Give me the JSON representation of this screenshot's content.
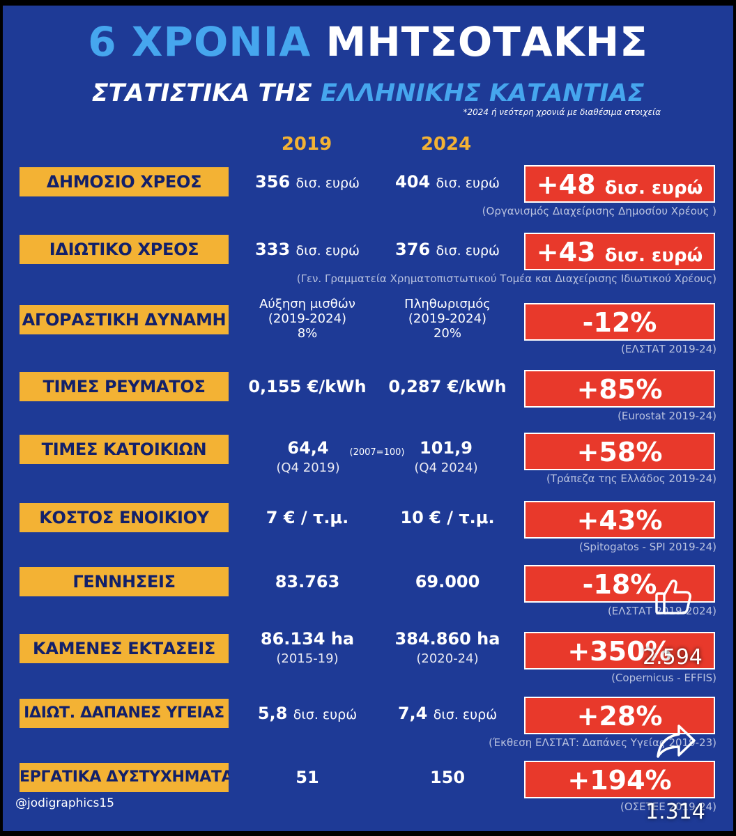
{
  "header": {
    "title_part1": "6 ΧΡΟΝΙΑ",
    "title_part2": "ΜΗΤΣΟΤΑΚΗΣ",
    "subtitle_part1": "ΣΤΑΤΙΣΤΙΚΑ ΤΗΣ",
    "subtitle_part2": "ΕΛΛΗΝΙΚΗΣ ΚΑΤΑΝΤΙΑΣ",
    "note": "*2024 ή νεότερη χρονιά με διαθέσιμα στοιχεία",
    "year1": "2019",
    "year2": "2024"
  },
  "rows": [
    {
      "label": "ΔΗΜΟΣΙΟ ΧΡΕΟΣ",
      "v1_num": "356",
      "v1_unit": "δισ. ευρώ",
      "v2_num": "404",
      "v2_unit": "δισ. ευρώ",
      "change": "+48",
      "change_unit": "δισ. ευρώ",
      "source": "(Οργανισμός Διαχείρισης Δημοσίου Χρέους )"
    },
    {
      "label": "ΙΔΙΩΤΙΚΟ ΧΡΕΟΣ",
      "v1_num": "333",
      "v1_unit": "δισ. ευρώ",
      "v2_num": "376",
      "v2_unit": "δισ. ευρώ",
      "change": "+43",
      "change_unit": "δισ. ευρώ",
      "source": "(Γεν. Γραμματεία Χρηματοπιστωτικού Τομέα και Διαχείρισης Ιδιωτικού Χρέους)"
    },
    {
      "label": "ΑΓΟΡΑΣΤΙΚΗ ΔΥΝΑΜΗ",
      "v1_l1": "Αύξηση μισθών",
      "v1_l2": "(2019-2024)",
      "v1_l3": "8%",
      "v2_l1": "Πληθωρισμός",
      "v2_l2": "(2019-2024)",
      "v2_l3": "20%",
      "change": "-12%",
      "source": "(ΕΛΣΤΑΤ 2019-24)"
    },
    {
      "label": "ΤΙΜΕΣ ΡΕΥΜΑΤΟΣ",
      "v1": "0,155 €/kWh",
      "v2": "0,287 €/kWh",
      "change": "+85%",
      "source": "(Eurostat 2019-24)"
    },
    {
      "label": "ΤΙΜΕΣ ΚΑΤΟΙΚΙΩΝ",
      "v1": "64,4",
      "v1_sub": "(Q4 2019)",
      "base": "(2007=100)",
      "v2": "101,9",
      "v2_sub": "(Q4 2024)",
      "change": "+58%",
      "source": "(Τράπεζα της Ελλάδος 2019-24)"
    },
    {
      "label": "ΚΟΣΤΟΣ ΕΝΟΙΚΙΟΥ",
      "v1": "7 € / τ.μ.",
      "v2": "10 € / τ.μ.",
      "change": "+43%",
      "source": "(Spitogatos - SPI 2019-24)"
    },
    {
      "label": "ΓΕΝΝΗΣΕΙΣ",
      "v1": "83.763",
      "v2": "69.000",
      "change": "-18%",
      "source": "(ΕΛΣΤΑΤ 2019-2024)"
    },
    {
      "label": "ΚΑΜΕΝΕΣ ΕΚΤΑΣΕΙΣ",
      "v1": "86.134 ha",
      "v1_sub": "(2015-19)",
      "v2": "384.860 ha",
      "v2_sub": "(2020-24)",
      "change": "+350%",
      "source": "(Copernicus - EFFIS)"
    },
    {
      "label": "ΙΔΙΩΤ. ΔΑΠΑΝΕΣ ΥΓΕΙΑΣ",
      "v1_num": "5,8",
      "v1_unit": "δισ. ευρώ",
      "v2_num": "7,4",
      "v2_unit": "δισ. ευρώ",
      "change": "+28%",
      "source": "(Έκθεση ΕΛΣΤΑΤ: Δαπάνες Υγείας 2019-23)"
    },
    {
      "label": "ΕΡΓΑΤΙΚΑ ΔΥΣΤΥΧΗΜΑΤΑ",
      "v1": "51",
      "v2": "150",
      "change": "+194%",
      "source": "(ΟΣΕΤΕΕ 2019-24)"
    }
  ],
  "footer": {
    "handle": "@jodigraphics15"
  },
  "overlay": {
    "like_icon": "thumbs-up-icon",
    "like_count": "2.594",
    "share_icon": "share-arrow-icon",
    "share_count": "1.314"
  },
  "colors": {
    "background": "#1e3a96",
    "accent_blue": "#46a6ee",
    "label_yellow": "#f3b234",
    "change_red": "#e8392b"
  }
}
